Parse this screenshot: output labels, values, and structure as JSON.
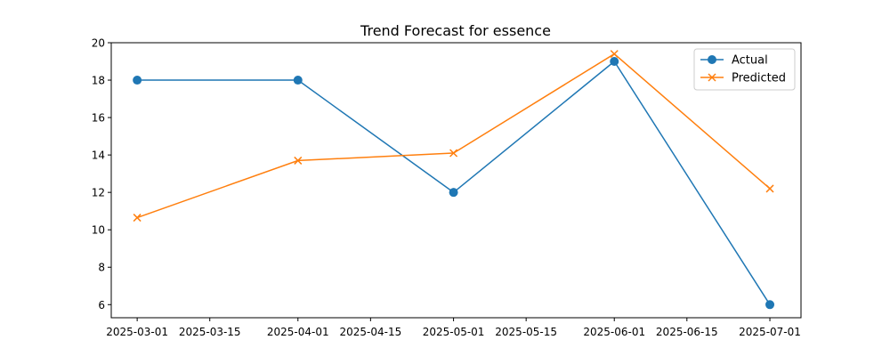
{
  "chart_data": {
    "type": "line",
    "title": "Trend Forecast for essence",
    "xlabel": "",
    "ylabel": "",
    "x": [
      "2025-03-01",
      "2025-04-01",
      "2025-05-01",
      "2025-06-01",
      "2025-07-01"
    ],
    "xlim": [
      "2025-02-24",
      "2025-07-07"
    ],
    "x_tick_labels": [
      "2025-03-01",
      "2025-03-15",
      "2025-04-01",
      "2025-04-15",
      "2025-05-01",
      "2025-05-15",
      "2025-06-01",
      "2025-06-15",
      "2025-07-01"
    ],
    "ylim": [
      5.3,
      20.0
    ],
    "y_ticks": [
      6,
      8,
      10,
      12,
      14,
      16,
      18,
      20
    ],
    "grid": false,
    "legend_position": "top-right",
    "series": [
      {
        "name": "Actual",
        "values": [
          18,
          18,
          12,
          19,
          6
        ],
        "color": "#1f77b4",
        "marker": "circle"
      },
      {
        "name": "Predicted",
        "values": [
          10.65,
          13.7,
          14.1,
          19.4,
          12.2
        ],
        "color": "#ff7f0e",
        "marker": "x"
      }
    ]
  }
}
